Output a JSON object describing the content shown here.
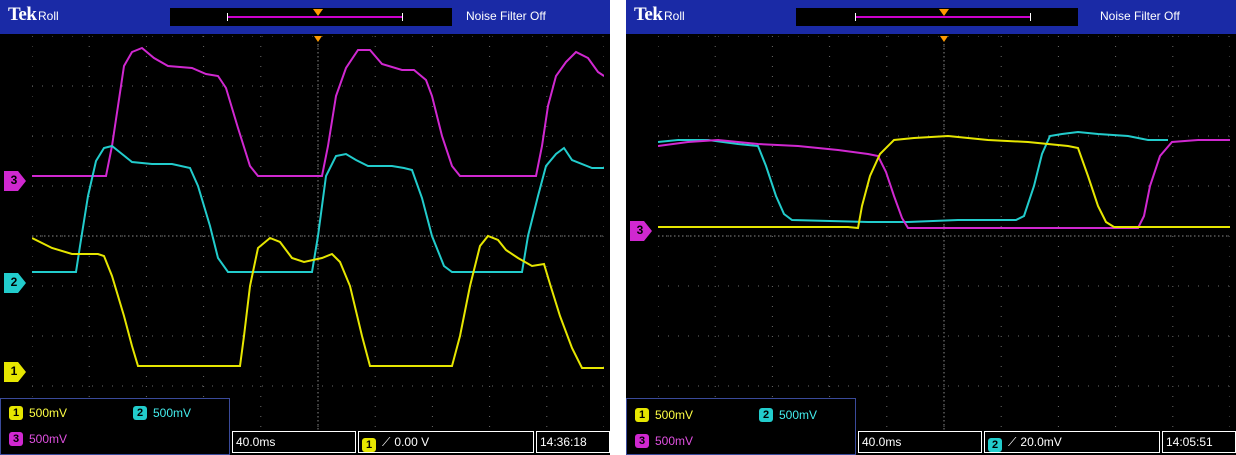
{
  "left": {
    "brand": "Tek",
    "mode": "Roll",
    "filter": "Noise Filter Off",
    "markers": [
      "3",
      "2",
      "1"
    ],
    "channels": {
      "ch1": {
        "num": "1",
        "scale": "500mV"
      },
      "ch2": {
        "num": "2",
        "scale": "500mV"
      },
      "ch3": {
        "num": "3",
        "scale": "500mV"
      }
    },
    "timebase": "40.0ms",
    "trigger": {
      "channel": "1",
      "level": "0.00 V"
    },
    "time": "14:36:18"
  },
  "right": {
    "brand": "Tek",
    "mode": "Roll",
    "filter": "Noise Filter Off",
    "markers": [
      "3"
    ],
    "channels": {
      "ch1": {
        "num": "1",
        "scale": "500mV"
      },
      "ch2": {
        "num": "2",
        "scale": "500mV"
      },
      "ch3": {
        "num": "3",
        "scale": "500mV"
      }
    },
    "timebase": "40.0ms",
    "trigger": {
      "channel": "2",
      "level": "20.0mV"
    },
    "time": "14:05:51"
  },
  "colors": {
    "ch1": "#e6e600",
    "ch2": "#22cccc",
    "ch3": "#d028d0",
    "frame": "#1a2aa6",
    "trigger_marker": "#ff9900"
  }
}
